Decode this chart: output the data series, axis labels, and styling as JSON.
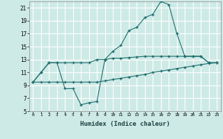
{
  "xlabel": "Humidex (Indice chaleur)",
  "bg_color": "#ceeae6",
  "grid_color": "#ffffff",
  "line_color": "#1a6b6b",
  "xmin": -0.5,
  "xmax": 23.5,
  "ymin": 5,
  "ymax": 22,
  "yticks": [
    5,
    7,
    9,
    11,
    13,
    15,
    17,
    19,
    21
  ],
  "xticks": [
    0,
    1,
    2,
    3,
    4,
    5,
    6,
    7,
    8,
    9,
    10,
    11,
    12,
    13,
    14,
    15,
    16,
    17,
    18,
    19,
    20,
    21,
    22,
    23
  ],
  "line1_x": [
    0,
    1,
    2,
    3,
    4,
    5,
    6,
    7,
    8,
    9,
    10,
    11,
    12,
    13,
    14,
    15,
    16,
    17,
    18,
    19,
    20,
    21,
    22,
    23
  ],
  "line1_y": [
    9.5,
    11,
    12.5,
    12.5,
    8.5,
    8.5,
    6.0,
    6.3,
    6.5,
    13.0,
    14.3,
    15.2,
    17.5,
    18.0,
    19.5,
    20.0,
    22.0,
    21.5,
    17.0,
    13.5,
    13.5,
    13.5,
    12.5,
    12.5
  ],
  "line2_x": [
    0,
    1,
    2,
    3,
    4,
    5,
    6,
    7,
    8,
    9,
    10,
    11,
    12,
    13,
    14,
    15,
    16,
    17,
    18,
    19,
    20,
    21,
    22,
    23
  ],
  "line2_y": [
    9.5,
    11.0,
    12.5,
    12.5,
    12.5,
    12.5,
    12.5,
    12.5,
    13.0,
    13.0,
    13.2,
    13.2,
    13.3,
    13.4,
    13.5,
    13.5,
    13.5,
    13.5,
    13.5,
    13.5,
    13.5,
    13.5,
    12.5,
    12.5
  ],
  "line3_x": [
    0,
    1,
    2,
    3,
    4,
    5,
    6,
    7,
    8,
    9,
    10,
    11,
    12,
    13,
    14,
    15,
    16,
    17,
    18,
    19,
    20,
    21,
    22,
    23
  ],
  "line3_y": [
    9.5,
    9.5,
    9.5,
    9.5,
    9.5,
    9.5,
    9.5,
    9.5,
    9.5,
    9.7,
    9.9,
    10.1,
    10.3,
    10.5,
    10.7,
    11.0,
    11.2,
    11.4,
    11.6,
    11.8,
    12.0,
    12.2,
    12.4,
    12.5
  ]
}
